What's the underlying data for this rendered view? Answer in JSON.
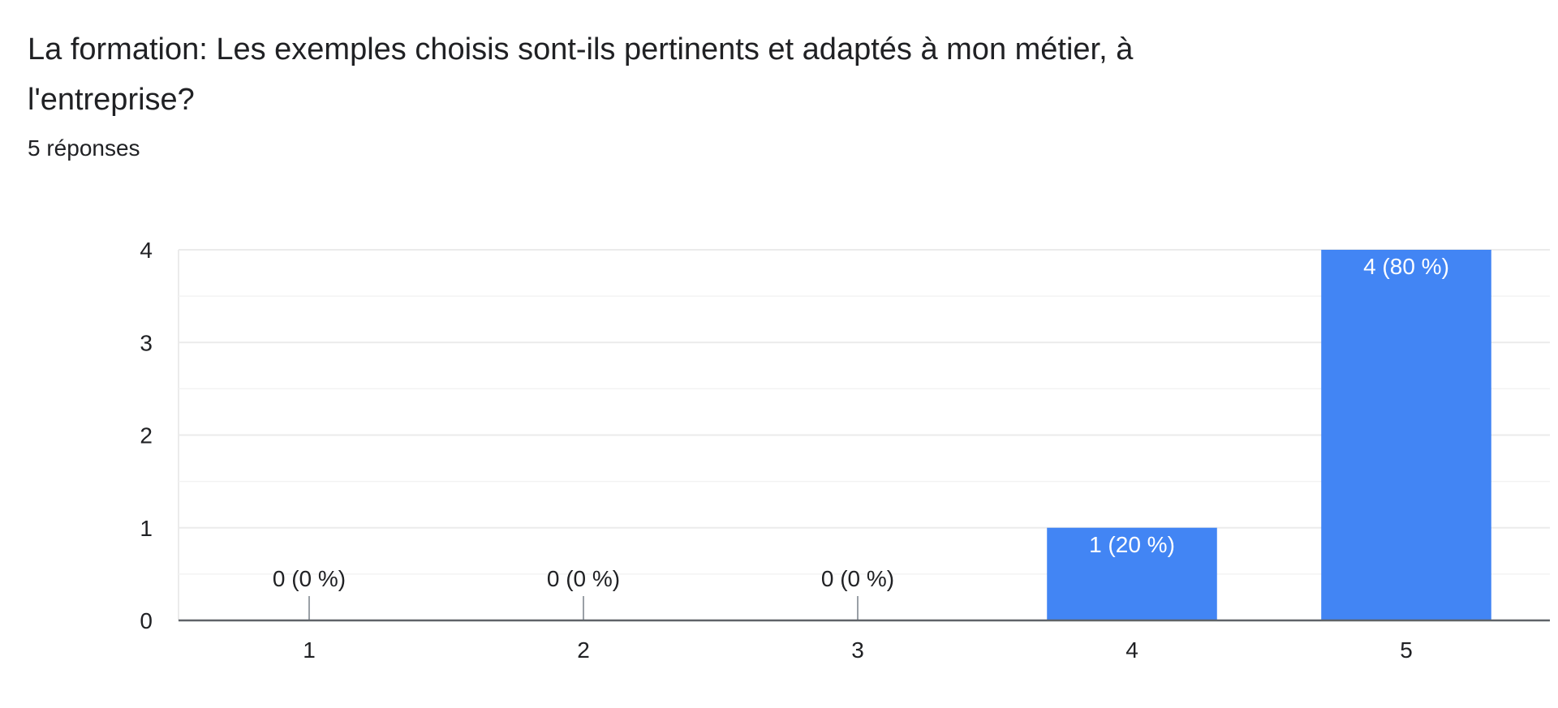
{
  "question": {
    "title": "La formation: Les exemples choisis sont-ils pertinents et adaptés à mon métier, à l'entreprise?",
    "response_count": "5 réponses"
  },
  "colors": {
    "bar": "#4285f4",
    "grid": "#ebebeb",
    "axis": "#5f6368",
    "text": "#202124",
    "label_inside": "#ffffff"
  },
  "chart_data": {
    "type": "bar",
    "title": "",
    "xlabel": "",
    "ylabel": "",
    "categories": [
      "1",
      "2",
      "3",
      "4",
      "5"
    ],
    "values": [
      0,
      0,
      0,
      1,
      4
    ],
    "data_labels": [
      "0 (0 %)",
      "0 (0 %)",
      "0 (0 %)",
      "1 (20 %)",
      "4 (80 %)"
    ],
    "ylim": [
      0,
      4
    ],
    "yticks": [
      0,
      1,
      2,
      3,
      4
    ],
    "grid": true,
    "legend": "none"
  }
}
